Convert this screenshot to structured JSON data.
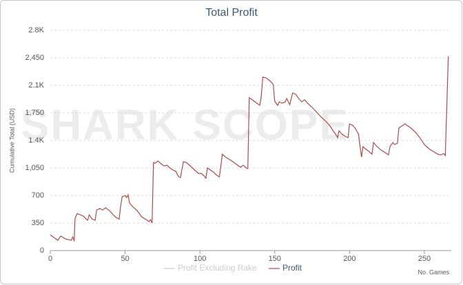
{
  "chart_data": {
    "type": "line",
    "title": "Total Profit",
    "y_label": "Cumulative Total (USD)",
    "x_label": "No. Games",
    "watermark": "SHARK SCOPE",
    "x": [
      0,
      3,
      5,
      7,
      10,
      14,
      15,
      16,
      16.5,
      17,
      18,
      20,
      22,
      24,
      25,
      26,
      28,
      30,
      31,
      33,
      35,
      37,
      40,
      42,
      44,
      46,
      47,
      48,
      50,
      51,
      52,
      53,
      55,
      58,
      61,
      64,
      66,
      67,
      68,
      69,
      70,
      72,
      74,
      76,
      78,
      80,
      82,
      84,
      85,
      86,
      87,
      88,
      89,
      91,
      93,
      95,
      97,
      99,
      101,
      103,
      104,
      105,
      107,
      109,
      111,
      113,
      114,
      115,
      117,
      120,
      124,
      127,
      129,
      131,
      132,
      133,
      135,
      138,
      140,
      141,
      142,
      144,
      146,
      148,
      149,
      150,
      152,
      153,
      155,
      157,
      158,
      160,
      162,
      164,
      166,
      168,
      170,
      172,
      175,
      178,
      181,
      184,
      187,
      189,
      191,
      192,
      193,
      195,
      197,
      199,
      200,
      202,
      204,
      206,
      207,
      208,
      209,
      211,
      213,
      215,
      216,
      218,
      221,
      224,
      226,
      227,
      229,
      230,
      232,
      233,
      235,
      237,
      239,
      241,
      244,
      247,
      250,
      253,
      256,
      259,
      261,
      263,
      264,
      266
    ],
    "series": [
      {
        "name": "Profit Excluding Rake",
        "color": "#cccccc",
        "visible": false
      },
      {
        "name": "Profit",
        "color": "#b04a4a",
        "visible": true,
        "values": [
          200,
          158,
          130,
          185,
          150,
          130,
          175,
          120,
          400,
          430,
          470,
          455,
          440,
          400,
          385,
          455,
          400,
          385,
          515,
          535,
          515,
          543,
          500,
          455,
          420,
          400,
          560,
          683,
          700,
          674,
          709,
          604,
          560,
          508,
          430,
          394,
          368,
          394,
          350,
          1120,
          1111,
          1138,
          1103,
          1076,
          1085,
          1050,
          1024,
          1006,
          962,
          936,
          928,
          1033,
          1129,
          1120,
          1085,
          1050,
          1015,
          980,
          980,
          945,
          919,
          1050,
          1024,
          998,
          962,
          936,
          1076,
          1225,
          1190,
          1155,
          1103,
          1059,
          1085,
          1050,
          1041,
          1943,
          1916,
          1873,
          1846,
          1960,
          2205,
          2196,
          2170,
          2135,
          2109,
          1899,
          1846,
          1890,
          1873,
          1890,
          1934,
          1855,
          2004,
          1986,
          1934,
          1890,
          1916,
          1873,
          1820,
          1759,
          1698,
          1645,
          1584,
          1523,
          1470,
          1435,
          1523,
          1479,
          1453,
          1435,
          1610,
          1593,
          1549,
          1479,
          1330,
          1190,
          1321,
          1286,
          1260,
          1225,
          1374,
          1330,
          1278,
          1243,
          1216,
          1321,
          1374,
          1348,
          1365,
          1558,
          1584,
          1610,
          1584,
          1558,
          1505,
          1435,
          1348,
          1295,
          1260,
          1225,
          1216,
          1234,
          1208,
          2468
        ]
      }
    ],
    "xlim": [
      0,
      268
    ],
    "xticks": [
      0,
      50,
      100,
      150,
      200,
      250
    ],
    "ylim": [
      0,
      2800
    ],
    "yticks": [
      0,
      350,
      700,
      {
        "value": 1050,
        "label": "1,050"
      },
      {
        "value": 1400,
        "label": "1.4K"
      },
      {
        "value": 1750,
        "label": "1,750"
      },
      {
        "value": 2100,
        "label": "2.1K"
      },
      {
        "value": 2450,
        "label": "2,450"
      },
      {
        "value": 2800,
        "label": "2.8K"
      }
    ],
    "grid": true
  }
}
